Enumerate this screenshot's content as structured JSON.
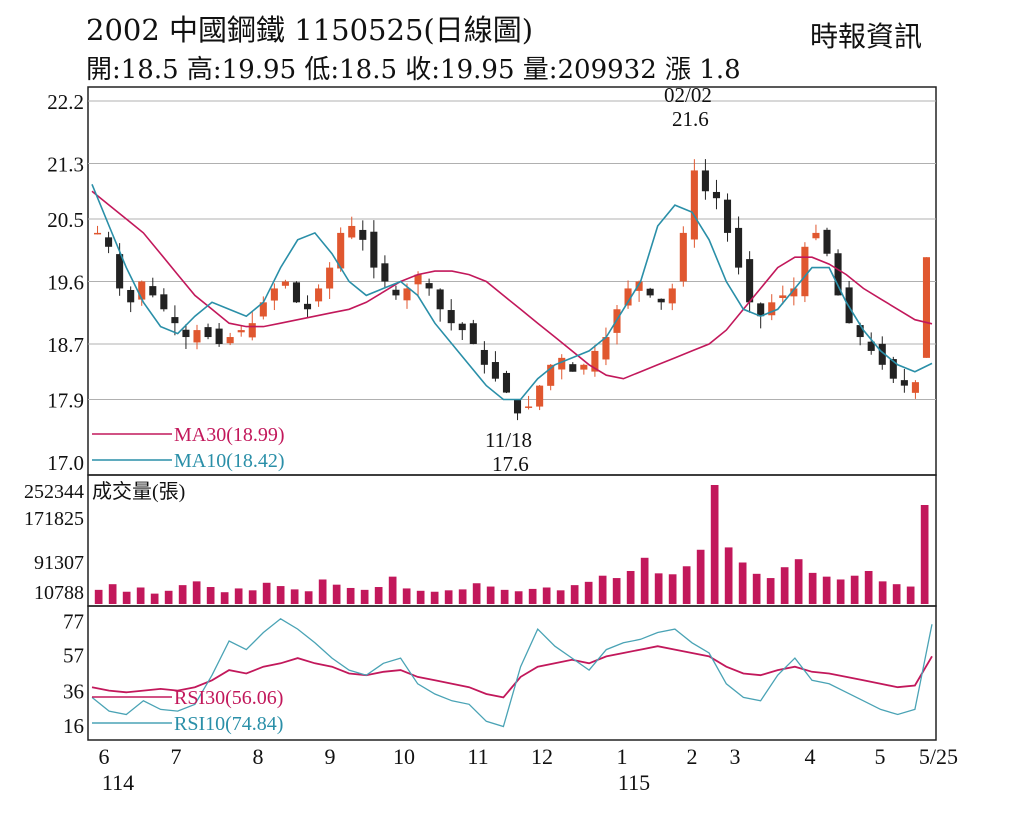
{
  "header": {
    "title": "2002  中國鋼鐵 1150525(日線圖)",
    "quote": "開:18.5 高:19.95 低:18.5 收:19.95 量:209932 漲 1.8",
    "source": "時報資訊"
  },
  "colors": {
    "up": "#e0572f",
    "down": "#222222",
    "ma30": "#c2185b",
    "ma10": "#2a8fa8",
    "volume": "#c2185b",
    "rsi30": "#c2185b",
    "rsi10": "#4aa3b5",
    "grid": "#b0b0b0",
    "frame": "#222222"
  },
  "chart_data": [
    {
      "type": "candlestick",
      "panel": "price",
      "ylim": [
        17.0,
        22.2
      ],
      "yticks": [
        "22.2",
        "21.3",
        "20.5",
        "19.6",
        "18.7",
        "17.9",
        "17.0"
      ],
      "grid": true,
      "last": {
        "open": 18.5,
        "high": 19.95,
        "low": 18.5,
        "close": 19.95
      },
      "annotations": [
        {
          "date": "02/02",
          "value": "21.6"
        },
        {
          "date": "11/18",
          "value": "17.6"
        }
      ],
      "close_path": [
        20.3,
        20.1,
        19.5,
        19.3,
        19.6,
        19.4,
        19.2,
        19.0,
        18.8,
        18.9,
        18.8,
        18.7,
        18.8,
        18.9,
        19.0,
        19.3,
        19.5,
        19.6,
        19.3,
        19.2,
        19.5,
        19.8,
        20.3,
        20.4,
        20.2,
        19.8,
        19.6,
        19.4,
        19.5,
        19.7,
        19.5,
        19.2,
        19.0,
        18.9,
        18.7,
        18.4,
        18.2,
        18.0,
        17.7,
        17.8,
        18.1,
        18.4,
        18.5,
        18.3,
        18.4,
        18.6,
        18.8,
        19.2,
        19.5,
        19.6,
        19.4,
        19.3,
        19.5,
        20.3,
        21.2,
        20.9,
        20.8,
        20.3,
        19.8,
        19.3,
        19.1,
        19.3,
        19.4,
        19.5,
        20.1,
        20.3,
        20.0,
        19.4,
        19.0,
        18.8,
        18.6,
        18.4,
        18.2,
        18.1,
        18.15,
        19.95
      ],
      "series": [
        {
          "name": "MA30(18.99)",
          "values": [
            20.9,
            20.7,
            20.5,
            20.3,
            20.0,
            19.7,
            19.4,
            19.2,
            19.0,
            18.95,
            18.95,
            19.0,
            19.05,
            19.1,
            19.15,
            19.2,
            19.3,
            19.45,
            19.6,
            19.7,
            19.75,
            19.75,
            19.7,
            19.6,
            19.4,
            19.2,
            19.0,
            18.8,
            18.6,
            18.4,
            18.25,
            18.2,
            18.3,
            18.4,
            18.5,
            18.6,
            18.7,
            18.9,
            19.2,
            19.5,
            19.8,
            19.95,
            19.95,
            19.85,
            19.7,
            19.5,
            19.35,
            19.2,
            19.05,
            18.99
          ]
        },
        {
          "name": "MA10(18.42)",
          "values": [
            21.0,
            20.4,
            19.8,
            19.3,
            18.95,
            18.85,
            19.1,
            19.3,
            19.2,
            19.1,
            19.3,
            19.8,
            20.2,
            20.3,
            20.0,
            19.6,
            19.4,
            19.5,
            19.6,
            19.4,
            19.0,
            18.7,
            18.4,
            18.1,
            17.9,
            17.9,
            18.2,
            18.4,
            18.5,
            18.6,
            18.8,
            19.2,
            19.6,
            20.4,
            20.7,
            20.6,
            20.2,
            19.6,
            19.2,
            19.1,
            19.2,
            19.5,
            19.8,
            19.8,
            19.3,
            18.9,
            18.6,
            18.4,
            18.3,
            18.42
          ]
        }
      ]
    },
    {
      "type": "bar",
      "panel": "volume",
      "title": "成交量(張)",
      "yticks": [
        "252344",
        "171825",
        "91307",
        "10788"
      ],
      "ylim": [
        10788,
        252344
      ],
      "last": 209932,
      "values": [
        30000,
        42000,
        26000,
        35000,
        22000,
        28000,
        40000,
        48000,
        36000,
        25000,
        33000,
        29000,
        45000,
        38000,
        31000,
        27000,
        52000,
        41000,
        34000,
        30000,
        36000,
        58000,
        33000,
        28000,
        26000,
        29000,
        31000,
        44000,
        37000,
        30000,
        27000,
        32000,
        35000,
        29000,
        40000,
        47000,
        60000,
        55000,
        70000,
        98000,
        65000,
        63000,
        80000,
        115000,
        252344,
        120000,
        88000,
        64000,
        55000,
        78000,
        95000,
        66000,
        58000,
        52000,
        60000,
        70000,
        48000,
        42000,
        37000,
        209932
      ]
    },
    {
      "type": "line",
      "panel": "rsi",
      "yticks": [
        "77",
        "57",
        "36",
        "16"
      ],
      "ylim": [
        10,
        82
      ],
      "series": [
        {
          "name": "RSI30(56.06)",
          "values": [
            38,
            36,
            35,
            36,
            37,
            36,
            38,
            42,
            48,
            46,
            50,
            52,
            55,
            52,
            50,
            46,
            45,
            47,
            48,
            44,
            42,
            40,
            38,
            34,
            32,
            44,
            50,
            52,
            54,
            52,
            56,
            58,
            60,
            62,
            60,
            58,
            56,
            50,
            46,
            45,
            48,
            50,
            47,
            46,
            44,
            42,
            40,
            38,
            39,
            56.06
          ]
        },
        {
          "name": "RSI10(74.84)",
          "values": [
            32,
            24,
            22,
            30,
            25,
            24,
            28,
            45,
            65,
            60,
            70,
            78,
            72,
            64,
            55,
            48,
            45,
            52,
            55,
            40,
            34,
            30,
            28,
            18,
            15,
            50,
            72,
            62,
            55,
            48,
            60,
            64,
            66,
            70,
            72,
            64,
            58,
            40,
            32,
            30,
            45,
            55,
            42,
            40,
            35,
            30,
            25,
            22,
            25,
            74.84
          ]
        }
      ]
    }
  ],
  "xaxis": {
    "ticks": [
      "6",
      "7",
      "8",
      "9",
      "10",
      "11",
      "12",
      "1",
      "2",
      "3",
      "4",
      "5",
      "5/25"
    ],
    "year_labels": [
      "114",
      "115"
    ]
  }
}
